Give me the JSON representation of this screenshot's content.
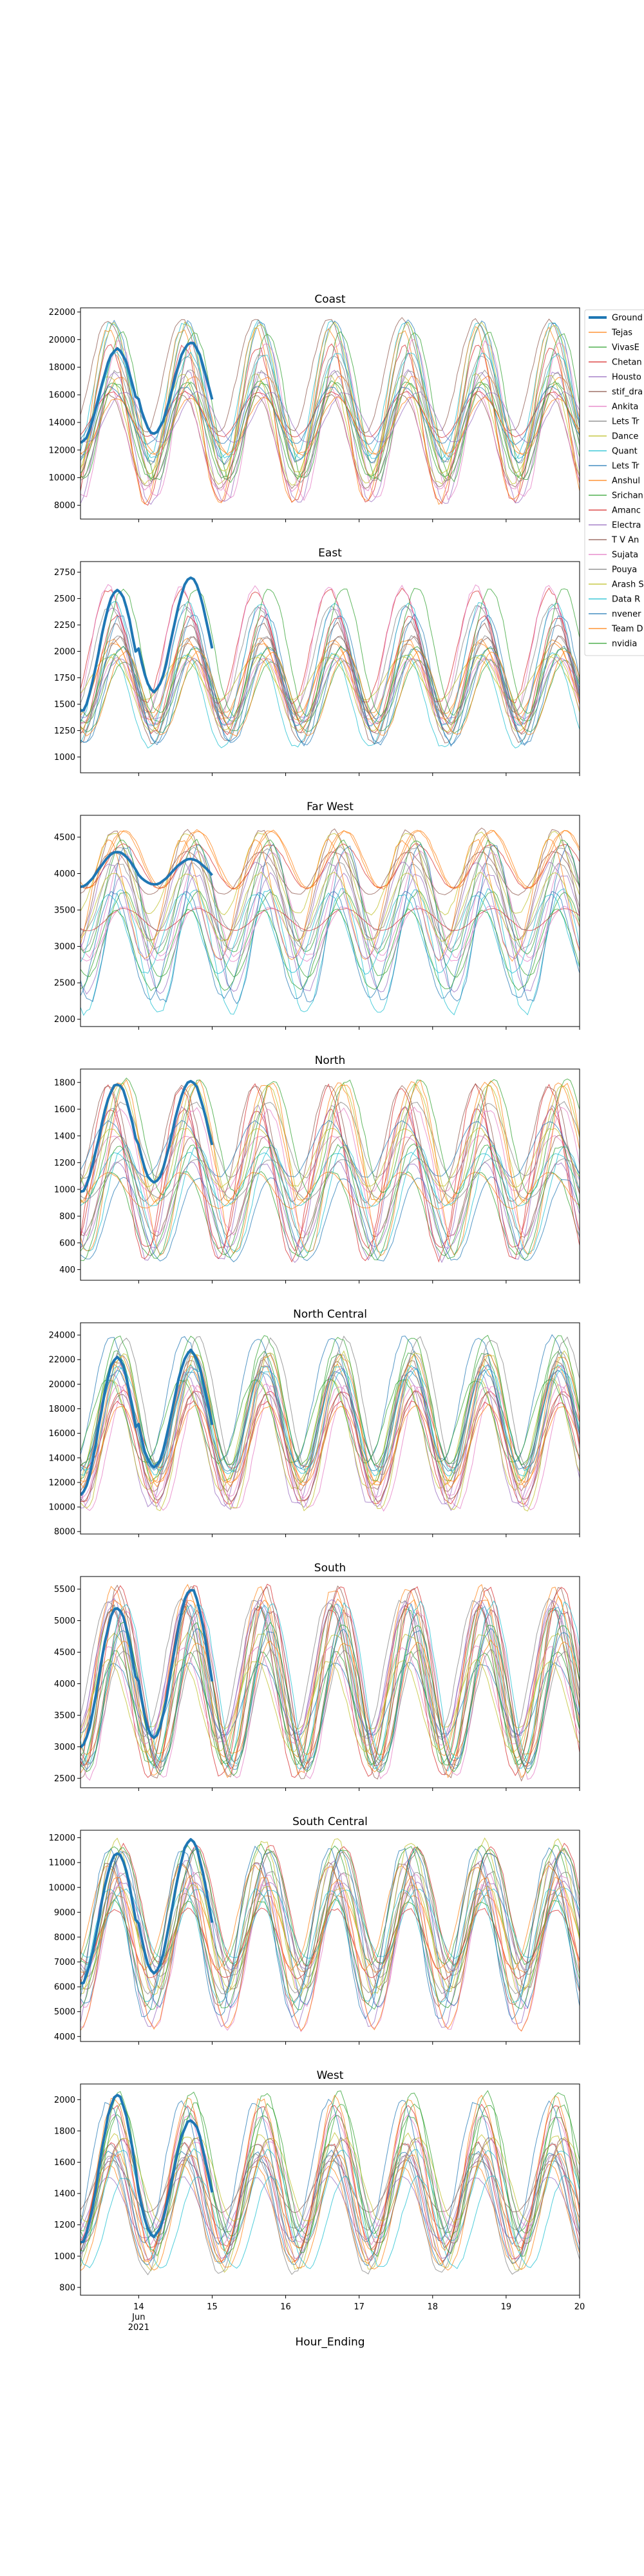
{
  "figure": {
    "xlabel": "Hour_Ending",
    "x_ticks": [
      {
        "label": "14",
        "sub": [
          "Jun",
          "2021"
        ],
        "date": "2021-06-14"
      },
      {
        "label": "15",
        "sub": [],
        "date": "2021-06-15"
      },
      {
        "label": "16",
        "sub": [],
        "date": "2021-06-16"
      },
      {
        "label": "17",
        "sub": [],
        "date": "2021-06-17"
      },
      {
        "label": "18",
        "sub": [],
        "date": "2021-06-18"
      },
      {
        "label": "19",
        "sub": [],
        "date": "2021-06-19"
      },
      {
        "label": "20",
        "sub": [],
        "date": "2021-06-20"
      }
    ],
    "legend": {
      "placement": "right of top panel, clipped",
      "entries": [
        {
          "label": "Ground",
          "color": "#1f77b4",
          "ground": true
        },
        {
          "label": "Tejas",
          "color": "#ff7f0e"
        },
        {
          "label": "VivasE",
          "color": "#2ca02c"
        },
        {
          "label": "Chetan",
          "color": "#d62728"
        },
        {
          "label": "Housto",
          "color": "#9467bd"
        },
        {
          "label": "stif_dra",
          "color": "#8c564b"
        },
        {
          "label": "Ankita",
          "color": "#e377c2"
        },
        {
          "label": "Lets Tr",
          "color": "#7f7f7f"
        },
        {
          "label": "Dance",
          "color": "#bcbd22"
        },
        {
          "label": "Quant",
          "color": "#17becf"
        },
        {
          "label": "Lets Tr",
          "color": "#1f77b4"
        },
        {
          "label": "Anshul",
          "color": "#ff7f0e"
        },
        {
          "label": "Srichan",
          "color": "#2ca02c"
        },
        {
          "label": "Amanc",
          "color": "#d62728"
        },
        {
          "label": "Electra",
          "color": "#9467bd"
        },
        {
          "label": "T V An",
          "color": "#8c564b"
        },
        {
          "label": "Sujata",
          "color": "#e377c2"
        },
        {
          "label": "Pouya",
          "color": "#7f7f7f"
        },
        {
          "label": "Arash S",
          "color": "#bcbd22"
        },
        {
          "label": "Data R",
          "color": "#17becf"
        },
        {
          "label": "nvener",
          "color": "#1f77b4"
        },
        {
          "label": "Team D",
          "color": "#ff7f0e"
        },
        {
          "label": "nvidia",
          "color": "#2ca02c"
        }
      ]
    }
  },
  "chart_data": [
    {
      "type": "line",
      "title": "Coast",
      "ylim": [
        7000,
        22300
      ],
      "yticks": [
        8000,
        10000,
        12000,
        14000,
        16000,
        18000,
        20000,
        22000
      ],
      "ground_truth": {
        "days": [
          "2021-06-13",
          "2021-06-14",
          "2021-06-15"
        ],
        "daily_min": [
          12500,
          13200,
          null
        ],
        "daily_max": [
          19300,
          19800,
          null
        ]
      },
      "forecast_band": {
        "daily_min_range": [
          8000,
          13500
        ],
        "daily_max_range": [
          15500,
          21500
        ]
      }
    },
    {
      "type": "line",
      "title": "East",
      "ylim": [
        850,
        2850
      ],
      "yticks": [
        1000,
        1250,
        1500,
        1750,
        2000,
        2250,
        2500,
        2750
      ],
      "ground_truth": {
        "days": [
          "2021-06-13",
          "2021-06-14",
          "2021-06-15"
        ],
        "daily_min": [
          1430,
          1620,
          null
        ],
        "daily_max": [
          2580,
          2700,
          null
        ]
      },
      "forecast_band": {
        "daily_min_range": [
          1000,
          1600
        ],
        "daily_max_range": [
          1900,
          2650
        ]
      }
    },
    {
      "type": "line",
      "title": "Far West",
      "ylim": [
        1900,
        4800
      ],
      "yticks": [
        2000,
        2500,
        3000,
        3500,
        4000,
        4500
      ],
      "ground_truth": {
        "days": [
          "2021-06-13",
          "2021-06-14",
          "2021-06-15"
        ],
        "daily_min": [
          3820,
          3850,
          null
        ],
        "daily_max": [
          4300,
          4200,
          null
        ]
      },
      "forecast_band": {
        "daily_min_range": [
          2050,
          3800
        ],
        "daily_max_range": [
          3500,
          4600
        ]
      }
    },
    {
      "type": "line",
      "title": "North",
      "ylim": [
        320,
        1900
      ],
      "yticks": [
        400,
        600,
        800,
        1000,
        1200,
        1400,
        1600,
        1800
      ],
      "ground_truth": {
        "days": [
          "2021-06-13",
          "2021-06-14",
          "2021-06-15"
        ],
        "daily_min": [
          980,
          1050,
          null
        ],
        "daily_max": [
          1790,
          1810,
          null
        ]
      },
      "forecast_band": {
        "daily_min_range": [
          450,
          1100
        ],
        "daily_max_range": [
          1050,
          1850
        ]
      }
    },
    {
      "type": "line",
      "title": "North Central",
      "ylim": [
        7800,
        25000
      ],
      "yticks": [
        8000,
        10000,
        12000,
        14000,
        16000,
        18000,
        20000,
        22000,
        24000
      ],
      "ground_truth": {
        "days": [
          "2021-06-13",
          "2021-06-14",
          "2021-06-15"
        ],
        "daily_min": [
          11000,
          13200,
          null
        ],
        "daily_max": [
          22200,
          22700,
          null
        ]
      },
      "forecast_band": {
        "daily_min_range": [
          9500,
          14000
        ],
        "daily_max_range": [
          17000,
          24000
        ]
      }
    },
    {
      "type": "line",
      "title": "South",
      "ylim": [
        2350,
        5700
      ],
      "yticks": [
        2500,
        3000,
        3500,
        4000,
        4500,
        5000,
        5500
      ],
      "ground_truth": {
        "days": [
          "2021-06-13",
          "2021-06-14",
          "2021-06-15"
        ],
        "daily_min": [
          3000,
          3150,
          null
        ],
        "daily_max": [
          5200,
          5500,
          null
        ]
      },
      "forecast_band": {
        "daily_min_range": [
          2500,
          3300
        ],
        "daily_max_range": [
          4300,
          5550
        ]
      }
    },
    {
      "type": "line",
      "title": "South Central",
      "ylim": [
        3800,
        12300
      ],
      "yticks": [
        4000,
        5000,
        6000,
        7000,
        8000,
        9000,
        10000,
        11000,
        12000
      ],
      "ground_truth": {
        "days": [
          "2021-06-13",
          "2021-06-14",
          "2021-06-15"
        ],
        "daily_min": [
          6100,
          6550,
          null
        ],
        "daily_max": [
          11400,
          11900,
          null
        ]
      },
      "forecast_band": {
        "daily_min_range": [
          4200,
          7300
        ],
        "daily_max_range": [
          9000,
          11900
        ]
      }
    },
    {
      "type": "line",
      "title": "West",
      "ylim": [
        750,
        2100
      ],
      "yticks": [
        800,
        1000,
        1200,
        1400,
        1600,
        1800,
        2000
      ],
      "ground_truth": {
        "days": [
          "2021-06-13",
          "2021-06-14",
          "2021-06-15"
        ],
        "daily_min": [
          1080,
          1130,
          null
        ],
        "daily_max": [
          2030,
          1870,
          null
        ]
      },
      "forecast_band": {
        "daily_min_range": [
          850,
          1300
        ],
        "daily_max_range": [
          1500,
          2050
        ]
      }
    }
  ]
}
